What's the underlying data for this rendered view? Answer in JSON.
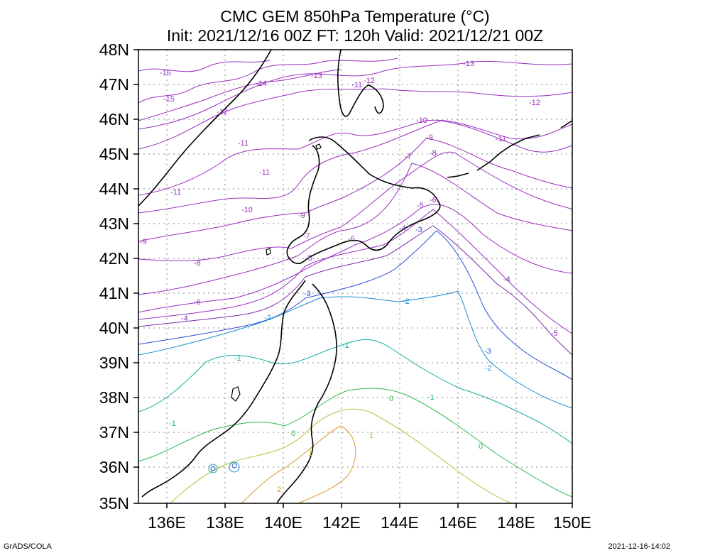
{
  "title": "CMC GEM 850hPa Temperature (°C)",
  "subtitle": "Init: 2021/12/16 00Z  FT: 120h  Valid: 2021/12/21 00Z",
  "footer_left": "GrADS/COLA",
  "footer_right": "2021-12-16-14:02",
  "lat_labels": [
    "48N",
    "47N",
    "46N",
    "45N",
    "44N",
    "43N",
    "42N",
    "41N",
    "40N",
    "39N",
    "38N",
    "37N",
    "36N",
    "35N"
  ],
  "lon_labels": [
    "136E",
    "138E",
    "140E",
    "142E",
    "144E",
    "146E",
    "148E",
    "150E"
  ],
  "contours": [
    {
      "label": "-16",
      "color": "#9b2fbf"
    },
    {
      "label": "-15",
      "color": "#9b2fbf"
    },
    {
      "label": "-14",
      "color": "#9b2fbf"
    },
    {
      "label": "-13",
      "color": "#9b2fbf"
    },
    {
      "label": "-12",
      "color": "#9b2fbf"
    },
    {
      "label": "-11",
      "color": "#9b2fbf"
    },
    {
      "label": "-10",
      "color": "#9b2fbf"
    },
    {
      "label": "-9",
      "color": "#9b2fbf"
    },
    {
      "label": "-8",
      "color": "#9b2fbf"
    },
    {
      "label": "-7",
      "color": "#9b2fbf"
    },
    {
      "label": "-6",
      "color": "#9b2fbf"
    },
    {
      "label": "-5",
      "color": "#9b2fbf"
    },
    {
      "label": "-4",
      "color": "#7a2da8"
    },
    {
      "label": "-3",
      "color": "#2a4fd8"
    },
    {
      "label": "-2",
      "color": "#1a8fd0"
    },
    {
      "label": "-1",
      "color": "#14b0a0"
    },
    {
      "label": "0",
      "color": "#2bb84a"
    },
    {
      "label": "1",
      "color": "#a8c832"
    },
    {
      "label": "2",
      "color": "#d89a2a"
    }
  ]
}
